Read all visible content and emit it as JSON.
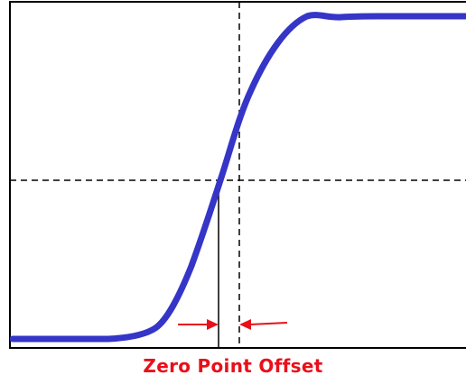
{
  "caption": "Zero Point Offset",
  "colors": {
    "curve": "#3535c8",
    "arrows": "#e8101a",
    "caption": "#e8101a",
    "frame": "#000000",
    "dashed": "#000000",
    "background": "#ffffff"
  }
}
